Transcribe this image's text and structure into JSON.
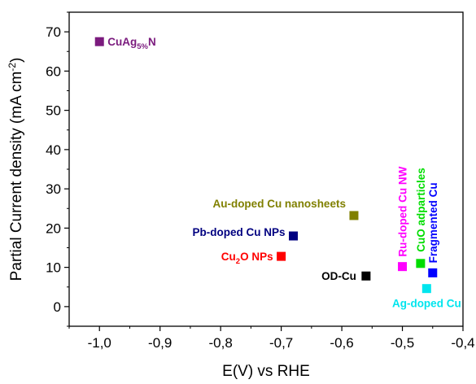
{
  "chart_data": {
    "type": "scatter",
    "title": "",
    "xlabel": "E(V) vs RHE",
    "ylabel": "Partial Current density (mA cm",
    "ylabel_sup": "-2",
    "ylabel_end": ")",
    "xlim": [
      -1.05,
      -0.4
    ],
    "ylim": [
      -5,
      75
    ],
    "x_ticks": [
      -1.0,
      -0.9,
      -0.8,
      -0.7,
      -0.6,
      -0.5,
      -0.4
    ],
    "x_tick_labels": [
      "-1,0",
      "-0,9",
      "-0,8",
      "-0,7",
      "-0,6",
      "-0,5",
      "-0,4"
    ],
    "y_ticks": [
      0,
      10,
      20,
      30,
      40,
      50,
      60,
      70
    ],
    "y_tick_labels": [
      "0",
      "10",
      "20",
      "30",
      "40",
      "50",
      "60",
      "70"
    ],
    "grid": false,
    "points": [
      {
        "label": "CuAg",
        "sub": "5%",
        "suffix": "N",
        "x": -1.0,
        "y": 67.5,
        "color": "#7b1b7e"
      },
      {
        "label": "Au-doped Cu nanosheets",
        "x": -0.58,
        "y": 23.2,
        "color": "#808000"
      },
      {
        "label": "Pb-doped Cu NPs",
        "x": -0.68,
        "y": 18.0,
        "color": "#000080"
      },
      {
        "label": "Cu",
        "sub": "2",
        "suffix": "O NPs",
        "x": -0.7,
        "y": 12.8,
        "color": "#ff0000"
      },
      {
        "label": "OD-Cu",
        "x": -0.56,
        "y": 7.8,
        "color": "#000000"
      },
      {
        "label": "Ru-doped Cu NW",
        "x": -0.5,
        "y": 10.2,
        "color": "#ff00ff"
      },
      {
        "label": "CuO adparticles",
        "x": -0.47,
        "y": 11.0,
        "color": "#00dd00"
      },
      {
        "label": "Fragmented Cu",
        "x": -0.45,
        "y": 8.6,
        "color": "#0000ff"
      },
      {
        "label": "Ag-doped Cu",
        "x": -0.46,
        "y": 4.6,
        "color": "#00e5ee"
      }
    ]
  }
}
